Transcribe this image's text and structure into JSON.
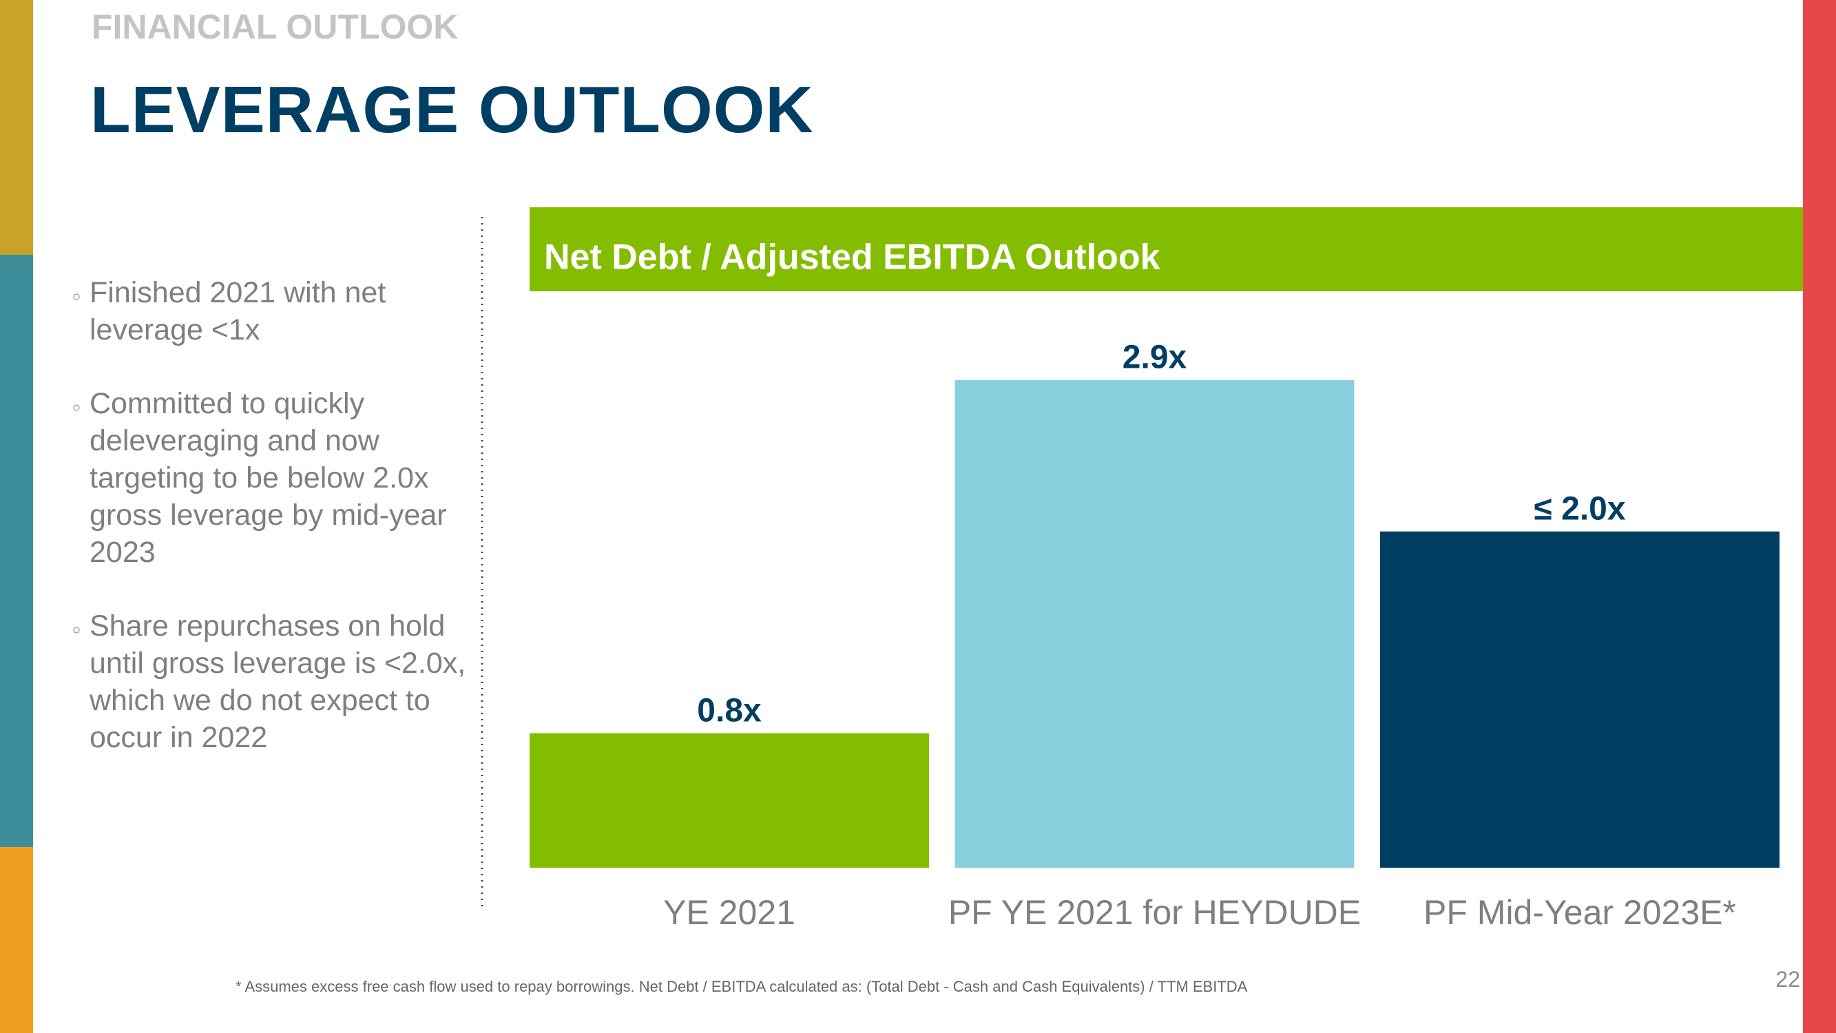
{
  "header": {
    "section": "FINANCIAL OUTLOOK",
    "title": "LEVERAGE OUTLOOK"
  },
  "bullets": [
    "Finished 2021 with net leverage <1x",
    "Committed to quickly deleveraging and now targeting to be below 2.0x gross leverage by mid-year 2023",
    "Share repurchases on hold until gross leverage is <2.0x, which we do not expect to occur in 2022"
  ],
  "chart_data": {
    "type": "bar",
    "title": "Net Debt / Adjusted EBITDA Outlook",
    "categories": [
      "YE 2021",
      "PF YE 2021 for HEYDUDE",
      "PF Mid-Year 2023E*"
    ],
    "values": [
      0.8,
      2.9,
      2.0
    ],
    "value_labels": [
      "0.8x",
      "2.9x",
      "≤ 2.0x"
    ],
    "colors": [
      "#84bd00",
      "#89d0de",
      "#003f63"
    ]
  },
  "footnote": "* Assumes excess free cash flow used to repay borrowings. Net Debt / EBITDA calculated as: (Total Debt - Cash and Cash Equivalents) / TTM EBITDA",
  "page_number": "22"
}
